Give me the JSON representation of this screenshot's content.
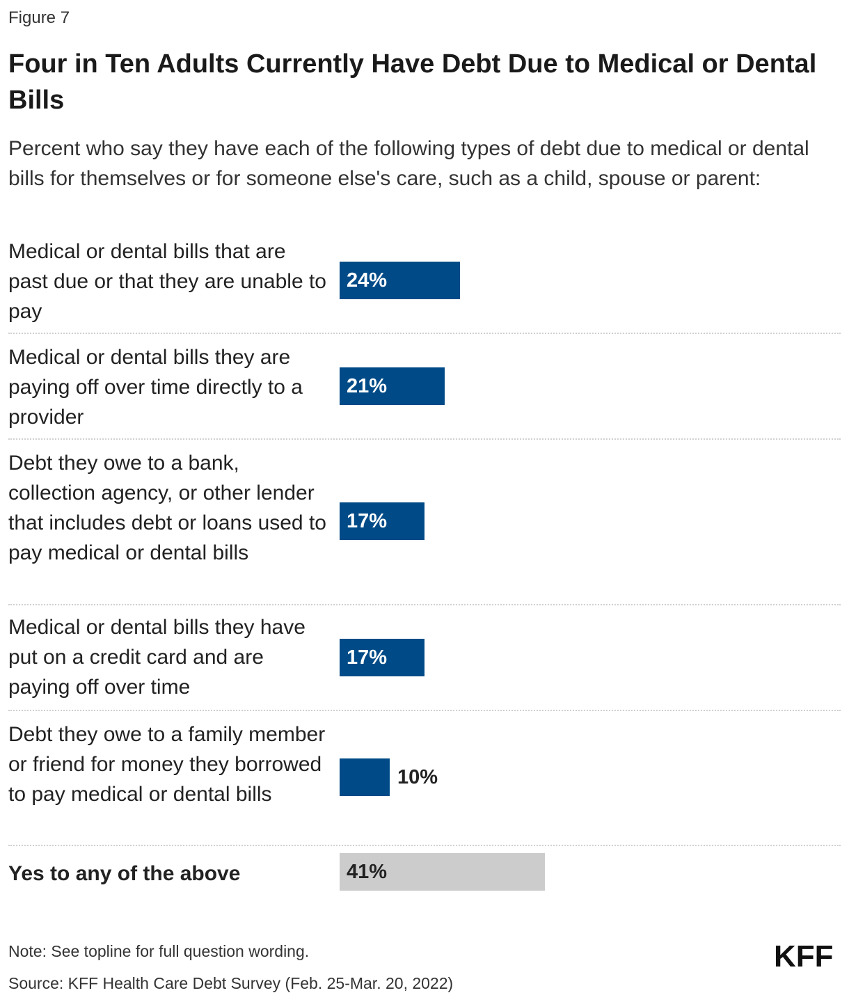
{
  "figure_label": "Figure 7",
  "chart_data": {
    "type": "bar",
    "orientation": "horizontal",
    "title": "Four in Ten Adults Currently Have Debt Due to Medical or Dental Bills",
    "subtitle": "Percent who say they have each of the following types of debt due to medical or dental bills for themselves or for someone else's care, such as a child, spouse or parent:",
    "categories": [
      "Medical or dental bills that are past due or that they are unable to pay",
      "Medical or dental bills they are paying off over time directly to a provider",
      "Debt they owe to a bank, collection agency, or other lender that includes debt or loans used to pay medical or dental bills",
      "Medical or dental bills they have put on a credit card and are paying off over time",
      "Debt they owe to a family member or friend for money they borrowed to pay medical or dental bills",
      "Yes to any of the above"
    ],
    "values": [
      24,
      21,
      17,
      17,
      10,
      41
    ],
    "value_labels": [
      "24%",
      "21%",
      "17%",
      "17%",
      "10%",
      "41%"
    ],
    "unit": "%",
    "xlim": [
      0,
      100
    ],
    "colors": [
      "#004b87",
      "#004b87",
      "#004b87",
      "#004b87",
      "#004b87",
      "#cccccc"
    ],
    "grid": false,
    "legend": "none"
  },
  "note": "Note: See topline for full question wording.",
  "source": "Source: KFF Health Care Debt Survey (Feb. 25-Mar. 20, 2022)",
  "logo_text": "KFF"
}
